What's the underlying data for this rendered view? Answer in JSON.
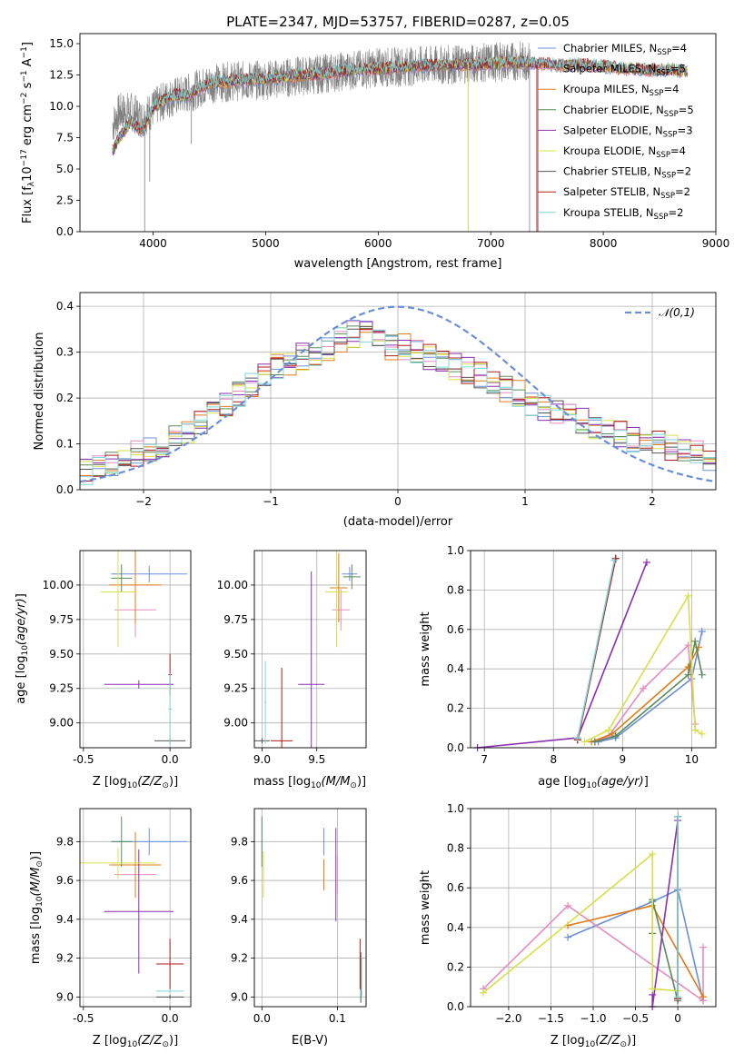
{
  "palette": {
    "chabrier_miles": "#6a8fd8",
    "salpeter_miles": "#e58cc0",
    "kroupa_miles": "#e07b1a",
    "chabrier_elodie": "#5a8a5a",
    "salpeter_elodie": "#8a2fb0",
    "kroupa_elodie": "#d6e04a",
    "chabrier_stelib": "#555555",
    "salpeter_stelib": "#b01c1c",
    "kroupa_stelib": "#7fd6d6"
  },
  "chart_data": [
    {
      "id": "spectrum",
      "type": "line",
      "title": "PLATE=2347, MJD=53757, FIBERID=0287, z=0.05",
      "xlabel": "wavelength [Angstrom, rest frame]",
      "ylabel": "Flux [f_λ 10^-17 erg cm^-2 s^-1 A^-1]",
      "xlim": [
        3350,
        9000
      ],
      "ylim": [
        0,
        15.8
      ],
      "xticks": [
        4000,
        5000,
        6000,
        7000,
        8000,
        9000
      ],
      "yticks": [
        0.0,
        2.5,
        5.0,
        7.5,
        10.0,
        12.5,
        15.0
      ],
      "legend_placement": "top-right",
      "legend": [
        "Chabrier MILES, N_SSP=4",
        "Salpeter MILES, N_SSP=5",
        "Kroupa MILES, N_SSP=4",
        "Chabrier ELODIE, N_SSP=5",
        "Salpeter ELODIE, N_SSP=3",
        "Kroupa ELODIE, N_SSP=4",
        "Chabrier STELIB, N_SSP=2",
        "Salpeter STELIB, N_SSP=2",
        "Kroupa STELIB, N_SSP=2"
      ],
      "observed_series": {
        "x": [
          3640,
          3700,
          3800,
          3900,
          4000,
          4100,
          4200,
          4300,
          4400,
          4500,
          4700,
          5000,
          5200,
          5500,
          5800,
          6000,
          6300,
          6600,
          6800,
          7000,
          7200,
          7350
        ],
        "y": [
          8.5,
          9.5,
          9.6,
          9.0,
          9.8,
          10.5,
          10.8,
          11.0,
          11.4,
          11.8,
          12.0,
          12.1,
          12.3,
          12.6,
          12.9,
          13.1,
          13.2,
          13.3,
          13.4,
          13.5,
          13.6,
          13.6
        ]
      },
      "model_x": [
        3640,
        3700,
        3800,
        3900,
        4000,
        4100,
        4200,
        4300,
        4400,
        4500,
        4700,
        5000,
        5200,
        5500,
        5800,
        6000,
        6300,
        6600,
        6800,
        7000,
        7200,
        7400,
        7600,
        7800,
        8000,
        8200,
        8400,
        8600,
        8750
      ],
      "model_y": [
        6.4,
        7.5,
        8.8,
        8.0,
        9.9,
        10.5,
        10.9,
        10.8,
        11.4,
        11.8,
        12.0,
        12.2,
        12.4,
        12.6,
        12.9,
        13.0,
        13.2,
        13.3,
        13.3,
        13.4,
        13.5,
        13.4,
        13.3,
        13.3,
        13.2,
        13.0,
        12.9,
        12.9,
        12.8
      ]
    },
    {
      "id": "residuals",
      "type": "line",
      "xlabel": "(data-model)/error",
      "ylabel": "Normed distribution",
      "xlim": [
        -2.5,
        2.5
      ],
      "ylim": [
        0,
        0.43
      ],
      "xticks": [
        -2,
        -1,
        0,
        1,
        2
      ],
      "yticks": [
        0.0,
        0.1,
        0.2,
        0.3,
        0.4
      ],
      "legend": [
        "𝒩(0,1)"
      ],
      "legend_placement": "top-right",
      "hist_bins": [
        -2.5,
        2.5,
        50
      ],
      "hist_base": [
        0.04,
        0.05,
        0.06,
        0.07,
        0.08,
        0.09,
        0.1,
        0.11,
        0.13,
        0.15,
        0.17,
        0.19,
        0.21,
        0.23,
        0.25,
        0.27,
        0.28,
        0.29,
        0.3,
        0.31,
        0.33,
        0.34,
        0.34,
        0.32,
        0.31,
        0.31,
        0.3,
        0.29,
        0.28,
        0.27,
        0.26,
        0.25,
        0.23,
        0.22,
        0.21,
        0.19,
        0.18,
        0.17,
        0.16,
        0.15,
        0.14,
        0.13,
        0.12,
        0.11,
        0.1,
        0.1,
        0.09,
        0.08,
        0.08,
        0.07
      ]
    },
    {
      "id": "age_vs_Z",
      "type": "scatter",
      "xlabel": "Z [log10(Z/Z⊙)]",
      "ylabel": "age [log10(age/yr)]",
      "xlim": [
        -0.52,
        0.12
      ],
      "ylim": [
        8.82,
        10.25
      ],
      "xticks": [
        -0.5,
        0.0
      ],
      "yticks": [
        9.0,
        9.25,
        9.5,
        9.75,
        10.0
      ],
      "points": [
        {
          "x": -0.12,
          "y": 10.08,
          "xerr": 0.22,
          "yerr": 0.06,
          "c": "chabrier_miles"
        },
        {
          "x": -0.2,
          "y": 9.82,
          "xerr": 0.12,
          "yerr": 0.2,
          "c": "salpeter_miles"
        },
        {
          "x": -0.2,
          "y": 10.0,
          "xerr": 0.15,
          "yerr": 0.28,
          "c": "kroupa_miles"
        },
        {
          "x": -0.28,
          "y": 10.05,
          "xerr": 0.06,
          "yerr": 0.1,
          "c": "chabrier_elodie"
        },
        {
          "x": -0.18,
          "y": 9.28,
          "xerr": 0.2,
          "yerr": 0.03,
          "c": "salpeter_elodie"
        },
        {
          "x": -0.3,
          "y": 9.95,
          "xerr": 0.1,
          "yerr": 0.4,
          "c": "kroupa_elodie"
        },
        {
          "x": 0.0,
          "y": 8.87,
          "xerr": 0.09,
          "yerr": 0.02,
          "c": "chabrier_stelib"
        },
        {
          "x": 0.0,
          "y": 9.35,
          "xerr": 0.01,
          "yerr": 0.15,
          "c": "salpeter_stelib"
        },
        {
          "x": 0.0,
          "y": 9.1,
          "xerr": 0.01,
          "yerr": 0.26,
          "c": "kroupa_stelib"
        }
      ]
    },
    {
      "id": "age_vs_mass",
      "type": "scatter",
      "xlabel": "mass [log10(M/M⊙)]",
      "ylabel": "",
      "xlim": [
        8.93,
        9.95
      ],
      "ylim": [
        8.82,
        10.25
      ],
      "xticks": [
        9.0,
        9.5
      ],
      "yticks": [
        9.0,
        9.25,
        9.5,
        9.75,
        10.0
      ],
      "points": [
        {
          "x": 9.8,
          "y": 10.08,
          "xerr": 0.07,
          "yerr": 0.05,
          "c": "chabrier_miles"
        },
        {
          "x": 9.72,
          "y": 9.82,
          "xerr": 0.08,
          "yerr": 0.15,
          "c": "salpeter_miles"
        },
        {
          "x": 9.7,
          "y": 9.98,
          "xerr": 0.08,
          "yerr": 0.25,
          "c": "kroupa_miles"
        },
        {
          "x": 9.82,
          "y": 10.06,
          "xerr": 0.08,
          "yerr": 0.09,
          "c": "chabrier_elodie"
        },
        {
          "x": 9.45,
          "y": 9.28,
          "xerr": 0.12,
          "yerr": 0.82,
          "c": "salpeter_elodie"
        },
        {
          "x": 9.68,
          "y": 9.95,
          "xerr": 0.1,
          "yerr": 0.4,
          "c": "kroupa_elodie"
        },
        {
          "x": 9.0,
          "y": 8.87,
          "xerr": 0.07,
          "yerr": 0.02,
          "c": "chabrier_stelib"
        },
        {
          "x": 9.18,
          "y": 8.87,
          "xerr": 0.1,
          "yerr": 0.53,
          "c": "salpeter_stelib"
        },
        {
          "x": 9.03,
          "y": 9.15,
          "xerr": 0.01,
          "yerr": 0.3,
          "c": "kroupa_stelib"
        }
      ]
    },
    {
      "id": "weight_vs_age",
      "type": "line",
      "xlabel": "age [log10(age/yr)]",
      "ylabel": "mass weight",
      "xlim": [
        6.8,
        10.35
      ],
      "ylim": [
        0,
        1.0
      ],
      "xticks": [
        7,
        8,
        9,
        10
      ],
      "yticks": [
        0.0,
        0.2,
        0.4,
        0.6,
        0.8,
        1.0
      ],
      "series": [
        {
          "c": "chabrier_miles",
          "x": [
            8.65,
            8.9,
            10.0,
            10.15
          ],
          "y": [
            0.03,
            0.05,
            0.35,
            0.59
          ]
        },
        {
          "c": "salpeter_miles",
          "x": [
            8.6,
            8.8,
            9.3,
            9.95,
            10.05
          ],
          "y": [
            0.03,
            0.06,
            0.3,
            0.52,
            0.12
          ]
        },
        {
          "c": "kroupa_miles",
          "x": [
            8.55,
            8.85,
            9.95,
            10.1
          ],
          "y": [
            0.03,
            0.07,
            0.41,
            0.51
          ]
        },
        {
          "c": "chabrier_elodie",
          "x": [
            8.6,
            8.9,
            9.95,
            10.05,
            10.15
          ],
          "y": [
            0.03,
            0.06,
            0.37,
            0.54,
            0.37
          ]
        },
        {
          "c": "salpeter_elodie",
          "x": [
            6.9,
            8.35,
            9.35
          ],
          "y": [
            0.0,
            0.05,
            0.94
          ]
        },
        {
          "c": "kroupa_elodie",
          "x": [
            8.45,
            8.8,
            9.95,
            10.05,
            10.15
          ],
          "y": [
            0.03,
            0.09,
            0.77,
            0.09,
            0.07
          ]
        },
        {
          "c": "chabrier_stelib",
          "x": [
            8.35,
            8.9
          ],
          "y": [
            0.04,
            0.96
          ]
        },
        {
          "c": "salpeter_stelib",
          "x": [
            8.35,
            8.9
          ],
          "y": [
            0.04,
            0.96
          ]
        },
        {
          "c": "kroupa_stelib",
          "x": [
            8.35,
            8.88
          ],
          "y": [
            0.05,
            0.95
          ]
        }
      ]
    },
    {
      "id": "mass_vs_Z",
      "type": "scatter",
      "xlabel": "Z [log10(Z/Z⊙)]",
      "ylabel": "mass [log10(M/M⊙)]",
      "xlim": [
        -0.52,
        0.12
      ],
      "ylim": [
        8.95,
        9.97
      ],
      "xticks": [
        -0.5,
        0.0
      ],
      "yticks": [
        9.0,
        9.2,
        9.4,
        9.6,
        9.8
      ],
      "points": [
        {
          "x": -0.12,
          "y": 9.8,
          "xerr": 0.22,
          "yerr": 0.07,
          "c": "chabrier_miles"
        },
        {
          "x": -0.2,
          "y": 9.63,
          "xerr": 0.12,
          "yerr": 0.1,
          "c": "salpeter_miles"
        },
        {
          "x": -0.2,
          "y": 9.68,
          "xerr": 0.15,
          "yerr": 0.17,
          "c": "kroupa_miles"
        },
        {
          "x": -0.28,
          "y": 9.8,
          "xerr": 0.06,
          "yerr": 0.13,
          "c": "chabrier_elodie"
        },
        {
          "x": -0.18,
          "y": 9.44,
          "xerr": 0.2,
          "yerr": 0.32,
          "c": "salpeter_elodie"
        },
        {
          "x": -0.3,
          "y": 9.69,
          "xerr": 0.22,
          "yerr": 0.08,
          "c": "kroupa_elodie"
        },
        {
          "x": 0.0,
          "y": 9.0,
          "xerr": 0.08,
          "yerr": 0.01,
          "c": "chabrier_stelib"
        },
        {
          "x": 0.0,
          "y": 9.17,
          "xerr": 0.08,
          "yerr": 0.13,
          "c": "salpeter_stelib"
        },
        {
          "x": 0.0,
          "y": 9.03,
          "xerr": 0.08,
          "yerr": 0.01,
          "c": "kroupa_stelib"
        }
      ]
    },
    {
      "id": "mass_vs_ebv",
      "type": "scatter",
      "xlabel": "E(B-V)",
      "ylabel": "",
      "xlim": [
        -0.01,
        0.138
      ],
      "ylim": [
        8.95,
        9.97
      ],
      "xticks": [
        0.0,
        0.1
      ],
      "yticks": [
        9.0,
        9.2,
        9.4,
        9.6,
        9.8
      ],
      "points": [
        {
          "x": 0.082,
          "y": 9.8,
          "xerr": 0.0,
          "yerr": 0.07,
          "c": "chabrier_miles"
        },
        {
          "x": 0.1,
          "y": 9.63,
          "xerr": 0.0,
          "yerr": 0.1,
          "c": "salpeter_miles"
        },
        {
          "x": 0.082,
          "y": 9.63,
          "xerr": 0.0,
          "yerr": 0.08,
          "c": "kroupa_miles"
        },
        {
          "x": 0.0,
          "y": 9.8,
          "xerr": 0.0,
          "yerr": 0.13,
          "c": "chabrier_elodie"
        },
        {
          "x": 0.098,
          "y": 9.63,
          "xerr": 0.0,
          "yerr": 0.24,
          "c": "salpeter_elodie"
        },
        {
          "x": 0.002,
          "y": 9.63,
          "xerr": 0.0,
          "yerr": 0.12,
          "c": "kroupa_elodie"
        },
        {
          "x": 0.131,
          "y": 9.1,
          "xerr": 0.0,
          "yerr": 0.13,
          "c": "chabrier_stelib"
        },
        {
          "x": 0.13,
          "y": 9.17,
          "xerr": 0.0,
          "yerr": 0.13,
          "c": "salpeter_stelib"
        },
        {
          "x": 0.132,
          "y": 9.1,
          "xerr": 0.0,
          "yerr": 0.1,
          "c": "kroupa_stelib"
        }
      ]
    },
    {
      "id": "weight_vs_Z",
      "type": "line",
      "xlabel": "Z [log10(Z/Z⊙)]",
      "ylabel": "mass weight",
      "xlim": [
        -2.45,
        0.45
      ],
      "ylim": [
        0,
        1.0
      ],
      "xticks": [
        -2.0,
        -1.5,
        -1.0,
        -0.5,
        0.0
      ],
      "yticks": [
        0.0,
        0.2,
        0.4,
        0.6,
        0.8,
        1.0
      ],
      "series": [
        {
          "c": "chabrier_miles",
          "x": [
            -1.3,
            -0.3,
            0.0,
            0.3
          ],
          "y": [
            0.35,
            0.53,
            0.59,
            0.03
          ]
        },
        {
          "c": "salpeter_miles",
          "x": [
            -2.3,
            -1.3,
            0.3,
            0.3
          ],
          "y": [
            0.09,
            0.51,
            0.03,
            0.3
          ]
        },
        {
          "c": "kroupa_miles",
          "x": [
            -1.3,
            -0.3,
            0.3
          ],
          "y": [
            0.41,
            0.51,
            0.05
          ]
        },
        {
          "c": "chabrier_elodie",
          "x": [
            -0.3,
            -0.3,
            0.0
          ],
          "y": [
            0.37,
            0.54,
            0.03
          ]
        },
        {
          "c": "salpeter_elodie",
          "x": [
            -0.3,
            -0.3,
            0.0
          ],
          "y": [
            0.06,
            0.0,
            0.94
          ]
        },
        {
          "c": "kroupa_elodie",
          "x": [
            -2.3,
            -0.3,
            -0.3,
            0.0
          ],
          "y": [
            0.07,
            0.77,
            0.09,
            0.08
          ]
        },
        {
          "c": "chabrier_stelib",
          "x": [
            0.0,
            0.0
          ],
          "y": [
            0.04,
            0.96
          ]
        },
        {
          "c": "salpeter_stelib",
          "x": [
            0.0,
            0.0
          ],
          "y": [
            0.04,
            0.96
          ]
        },
        {
          "c": "kroupa_stelib",
          "x": [
            0.0,
            0.0
          ],
          "y": [
            0.05,
            0.96
          ]
        }
      ]
    }
  ]
}
